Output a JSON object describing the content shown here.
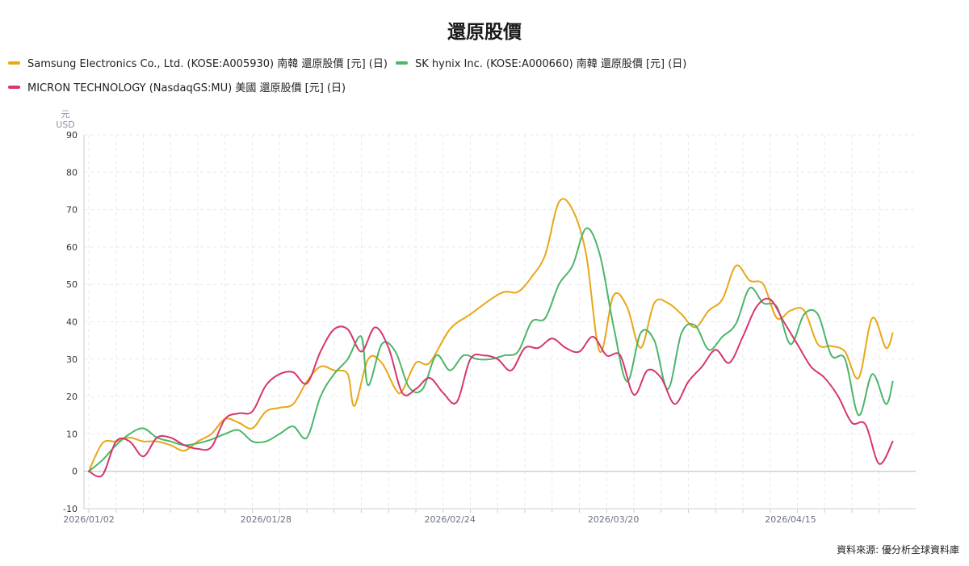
{
  "chart_data": {
    "type": "line",
    "title": "還原股價",
    "ylabel_unit": "元",
    "ylabel_currency": "USD",
    "ylim": [
      -10,
      90
    ],
    "yticks": [
      -10,
      0,
      10,
      20,
      30,
      40,
      50,
      60,
      70,
      80,
      90
    ],
    "x_range": [
      "2026/01/02",
      "2026/05/01"
    ],
    "xtick_labels": [
      "2026/01/02",
      "2026/01/28",
      "2026/02/24",
      "2026/03/20",
      "2026/04/15"
    ],
    "grid": true,
    "legend_position": "top-left",
    "source": "資料來源: 優分析全球資料庫",
    "series": [
      {
        "name": "Samsung Electronics Co., Ltd. (KOSE:A005930) 南韓 還原股價 [元] (日)",
        "color": "#E8A716",
        "points": [
          [
            "2026/01/02",
            0
          ],
          [
            "2026/01/04",
            7.5
          ],
          [
            "2026/01/06",
            8
          ],
          [
            "2026/01/08",
            9
          ],
          [
            "2026/01/10",
            8
          ],
          [
            "2026/01/12",
            8
          ],
          [
            "2026/01/14",
            7
          ],
          [
            "2026/01/16",
            5.5
          ],
          [
            "2026/01/18",
            8
          ],
          [
            "2026/01/20",
            10
          ],
          [
            "2026/01/22",
            14
          ],
          [
            "2026/01/24",
            13
          ],
          [
            "2026/01/26",
            11.5
          ],
          [
            "2026/01/28",
            16
          ],
          [
            "2026/01/30",
            17
          ],
          [
            "2026/02/01",
            18
          ],
          [
            "2026/02/03",
            24
          ],
          [
            "2026/02/05",
            28
          ],
          [
            "2026/02/07",
            27
          ],
          [
            "2026/02/09",
            26
          ],
          [
            "2026/02/10",
            17.5
          ],
          [
            "2026/02/12",
            30
          ],
          [
            "2026/02/14",
            29
          ],
          [
            "2026/02/16",
            22
          ],
          [
            "2026/02/17",
            21.5
          ],
          [
            "2026/02/19",
            29
          ],
          [
            "2026/02/21",
            29
          ],
          [
            "2026/02/24",
            38
          ],
          [
            "2026/02/27",
            42
          ],
          [
            "2026/03/02",
            46
          ],
          [
            "2026/03/04",
            48
          ],
          [
            "2026/03/06",
            48
          ],
          [
            "2026/03/08",
            52
          ],
          [
            "2026/03/10",
            58
          ],
          [
            "2026/03/12",
            72
          ],
          [
            "2026/03/14",
            70
          ],
          [
            "2026/03/16",
            58
          ],
          [
            "2026/03/18",
            32
          ],
          [
            "2026/03/20",
            47
          ],
          [
            "2026/03/22",
            44
          ],
          [
            "2026/03/24",
            33
          ],
          [
            "2026/03/26",
            45
          ],
          [
            "2026/03/28",
            45
          ],
          [
            "2026/03/30",
            42
          ],
          [
            "2026/04/01",
            38.5
          ],
          [
            "2026/04/03",
            43
          ],
          [
            "2026/04/05",
            46
          ],
          [
            "2026/04/07",
            55
          ],
          [
            "2026/04/09",
            51
          ],
          [
            "2026/04/11",
            50
          ],
          [
            "2026/04/13",
            41
          ],
          [
            "2026/04/15",
            43
          ],
          [
            "2026/04/17",
            43
          ],
          [
            "2026/04/19",
            34
          ],
          [
            "2026/04/21",
            33.5
          ],
          [
            "2026/04/23",
            32
          ],
          [
            "2026/04/25",
            25
          ],
          [
            "2026/04/27",
            41
          ],
          [
            "2026/04/29",
            33
          ],
          [
            "2026/04/30",
            37
          ]
        ]
      },
      {
        "name": "SK hynix Inc. (KOSE:A000660) 南韓 還原股價 [元] (日)",
        "color": "#4DB56A",
        "points": [
          [
            "2026/01/02",
            0
          ],
          [
            "2026/01/04",
            3
          ],
          [
            "2026/01/06",
            7
          ],
          [
            "2026/01/08",
            10
          ],
          [
            "2026/01/10",
            11.5
          ],
          [
            "2026/01/12",
            9
          ],
          [
            "2026/01/14",
            8
          ],
          [
            "2026/01/16",
            7
          ],
          [
            "2026/01/18",
            7.5
          ],
          [
            "2026/01/20",
            8.5
          ],
          [
            "2026/01/22",
            10
          ],
          [
            "2026/01/24",
            11
          ],
          [
            "2026/01/26",
            8
          ],
          [
            "2026/01/28",
            8
          ],
          [
            "2026/01/30",
            10
          ],
          [
            "2026/02/01",
            12
          ],
          [
            "2026/02/03",
            9
          ],
          [
            "2026/02/05",
            20
          ],
          [
            "2026/02/07",
            26
          ],
          [
            "2026/02/09",
            30
          ],
          [
            "2026/02/11",
            36
          ],
          [
            "2026/02/12",
            23
          ],
          [
            "2026/02/14",
            34
          ],
          [
            "2026/02/16",
            32
          ],
          [
            "2026/02/18",
            22.5
          ],
          [
            "2026/02/20",
            22
          ],
          [
            "2026/02/22",
            31
          ],
          [
            "2026/02/24",
            27
          ],
          [
            "2026/02/26",
            31
          ],
          [
            "2026/02/28",
            30
          ],
          [
            "2026/03/02",
            30
          ],
          [
            "2026/03/04",
            31
          ],
          [
            "2026/03/06",
            32
          ],
          [
            "2026/03/08",
            40
          ],
          [
            "2026/03/10",
            41
          ],
          [
            "2026/03/12",
            50
          ],
          [
            "2026/03/14",
            55
          ],
          [
            "2026/03/16",
            65
          ],
          [
            "2026/03/18",
            58
          ],
          [
            "2026/03/20",
            39
          ],
          [
            "2026/03/22",
            24
          ],
          [
            "2026/03/24",
            37
          ],
          [
            "2026/03/26",
            35
          ],
          [
            "2026/03/28",
            22
          ],
          [
            "2026/03/30",
            37
          ],
          [
            "2026/04/01",
            39
          ],
          [
            "2026/04/03",
            32.5
          ],
          [
            "2026/04/05",
            36
          ],
          [
            "2026/04/07",
            39.5
          ],
          [
            "2026/04/09",
            49
          ],
          [
            "2026/04/11",
            45
          ],
          [
            "2026/04/13",
            44
          ],
          [
            "2026/04/15",
            34
          ],
          [
            "2026/04/17",
            42
          ],
          [
            "2026/04/19",
            42
          ],
          [
            "2026/04/21",
            31
          ],
          [
            "2026/04/23",
            30
          ],
          [
            "2026/04/25",
            15
          ],
          [
            "2026/04/27",
            26
          ],
          [
            "2026/04/29",
            18
          ],
          [
            "2026/04/30",
            24
          ]
        ]
      },
      {
        "name": "MICRON TECHNOLOGY (NasdaqGS:MU) 美國 還原股價 [元] (日)",
        "color": "#D6366E",
        "points": [
          [
            "2026/01/02",
            0
          ],
          [
            "2026/01/04",
            -1
          ],
          [
            "2026/01/06",
            8
          ],
          [
            "2026/01/08",
            8
          ],
          [
            "2026/01/10",
            4
          ],
          [
            "2026/01/12",
            9
          ],
          [
            "2026/01/14",
            9
          ],
          [
            "2026/01/16",
            7
          ],
          [
            "2026/01/18",
            6
          ],
          [
            "2026/01/20",
            6.5
          ],
          [
            "2026/01/22",
            14
          ],
          [
            "2026/01/24",
            15.5
          ],
          [
            "2026/01/26",
            16
          ],
          [
            "2026/01/28",
            23
          ],
          [
            "2026/01/30",
            26
          ],
          [
            "2026/02/01",
            26.5
          ],
          [
            "2026/02/03",
            23.5
          ],
          [
            "2026/02/05",
            32
          ],
          [
            "2026/02/07",
            38
          ],
          [
            "2026/02/09",
            38
          ],
          [
            "2026/02/11",
            32
          ],
          [
            "2026/02/13",
            38.5
          ],
          [
            "2026/02/15",
            33
          ],
          [
            "2026/02/17",
            21
          ],
          [
            "2026/02/19",
            22
          ],
          [
            "2026/02/21",
            25
          ],
          [
            "2026/02/23",
            21
          ],
          [
            "2026/02/25",
            18.5
          ],
          [
            "2026/02/27",
            30
          ],
          [
            "2026/03/01",
            31
          ],
          [
            "2026/03/03",
            30
          ],
          [
            "2026/03/05",
            27
          ],
          [
            "2026/03/07",
            33
          ],
          [
            "2026/03/09",
            33
          ],
          [
            "2026/03/11",
            35.5
          ],
          [
            "2026/03/13",
            33
          ],
          [
            "2026/03/15",
            32
          ],
          [
            "2026/03/17",
            36
          ],
          [
            "2026/03/19",
            31
          ],
          [
            "2026/03/21",
            31
          ],
          [
            "2026/03/23",
            20.5
          ],
          [
            "2026/03/25",
            27
          ],
          [
            "2026/03/27",
            25
          ],
          [
            "2026/03/29",
            18
          ],
          [
            "2026/03/31",
            24
          ],
          [
            "2026/04/02",
            28
          ],
          [
            "2026/04/04",
            32.5
          ],
          [
            "2026/04/06",
            29
          ],
          [
            "2026/04/08",
            36
          ],
          [
            "2026/04/10",
            44
          ],
          [
            "2026/04/12",
            46
          ],
          [
            "2026/04/14",
            40
          ],
          [
            "2026/04/16",
            34
          ],
          [
            "2026/04/18",
            28
          ],
          [
            "2026/04/20",
            25
          ],
          [
            "2026/04/22",
            20
          ],
          [
            "2026/04/24",
            13
          ],
          [
            "2026/04/26",
            12.5
          ],
          [
            "2026/04/28",
            2
          ],
          [
            "2026/04/30",
            8
          ]
        ]
      }
    ]
  }
}
